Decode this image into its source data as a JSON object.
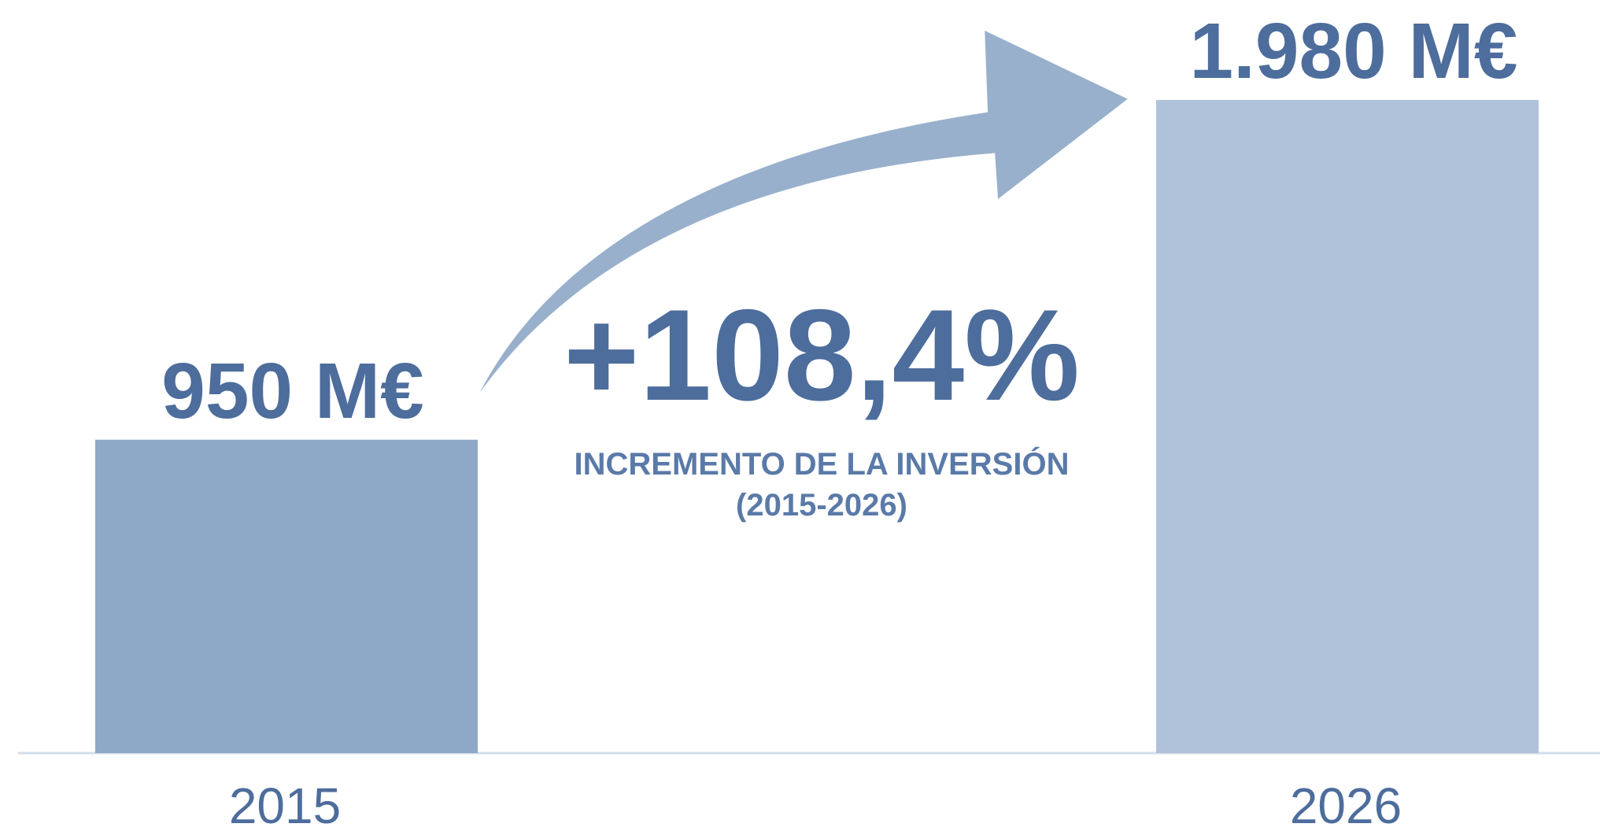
{
  "chart_data": {
    "type": "bar",
    "categories": [
      "2015",
      "2026"
    ],
    "values": [
      950,
      1980
    ],
    "value_labels": [
      "950 M€",
      "1.980 M€"
    ],
    "colors": [
      "#8ea8c8",
      "#b0c2da"
    ],
    "annotations": [
      "+108,4%",
      "INCREMENTO DE LA INVERSIÓN",
      "(2015-2026)"
    ]
  }
}
